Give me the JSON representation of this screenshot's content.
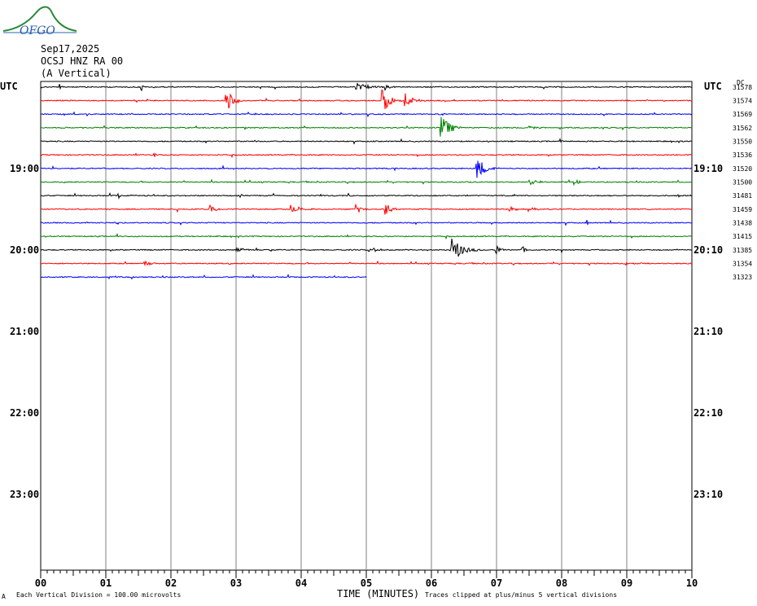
{
  "header": {
    "logo_text": "OFGO",
    "date": "Sep17,2025",
    "station": "OCSJ HNZ RA 00",
    "component": "(A Vertical)"
  },
  "axes": {
    "left_unit": "UTC",
    "right_unit": "UTC",
    "right_dc_label": "DC"
  },
  "footer": {
    "left_note": "Each Vertical Division =  100.00 microvolts",
    "x_title": "TIME (MINUTES)",
    "right_note": "Traces clipped at plus/minus 5 vertical divisions",
    "corner_mark": "A"
  },
  "colors": {
    "cycle": [
      "#000000",
      "#ff0000",
      "#0000ff",
      "#008000"
    ],
    "grid": "#808080"
  },
  "chart_data": {
    "type": "line",
    "title": "Sep17,2025 OCSJ HNZ RA 00 (A Vertical)",
    "xlabel": "TIME (MINUTES)",
    "ylabel": "UTC",
    "x_ticks": [
      "00",
      "01",
      "02",
      "03",
      "04",
      "05",
      "06",
      "07",
      "08",
      "09",
      "10"
    ],
    "xlim": [
      0,
      10
    ],
    "time_labels": [
      {
        "left": "19:00",
        "right": "19:10",
        "line_index": 6
      },
      {
        "left": "20:00",
        "right": "20:10",
        "line_index": 12
      },
      {
        "left": "21:00",
        "right": "21:10",
        "line_index": 18
      },
      {
        "left": "22:00",
        "right": "22:10",
        "line_index": 24
      },
      {
        "left": "23:00",
        "right": "23:10",
        "line_index": 30
      }
    ],
    "total_lines": 36,
    "traces": [
      {
        "dc": "31578",
        "color": "#000000",
        "end_minute": 10,
        "events": [
          {
            "t": 0.3,
            "amp": 4,
            "dur": 0.05
          },
          {
            "t": 1.55,
            "amp": 6,
            "dur": 0.05
          },
          {
            "t": 4.85,
            "amp": 6,
            "dur": 0.45
          },
          {
            "t": 5.3,
            "amp": 3,
            "dur": 0.2
          }
        ]
      },
      {
        "dc": "31574",
        "color": "#ff0000",
        "end_minute": 10,
        "events": [
          {
            "t": 2.85,
            "amp": 16,
            "dur": 0.25
          },
          {
            "t": 5.25,
            "amp": 16,
            "dur": 0.3
          },
          {
            "t": 5.6,
            "amp": 9,
            "dur": 0.3
          }
        ]
      },
      {
        "dc": "31569",
        "color": "#0000ff",
        "end_minute": 10,
        "events": [
          {
            "t": 6.15,
            "amp": 2,
            "dur": 0.1
          }
        ]
      },
      {
        "dc": "31562",
        "color": "#008000",
        "end_minute": 10,
        "events": [
          {
            "t": 6.15,
            "amp": 16,
            "dur": 0.35
          },
          {
            "t": 7.5,
            "amp": 2,
            "dur": 0.3
          }
        ]
      },
      {
        "dc": "31550",
        "color": "#000000",
        "end_minute": 10,
        "events": [
          {
            "t": 3.3,
            "amp": 2,
            "dur": 0.05
          },
          {
            "t": 8.0,
            "amp": 2,
            "dur": 0.05
          }
        ]
      },
      {
        "dc": "31536",
        "color": "#ff0000",
        "end_minute": 10,
        "events": [
          {
            "t": 1.75,
            "amp": 3,
            "dur": 0.05
          }
        ]
      },
      {
        "dc": "31520",
        "color": "#0000ff",
        "end_minute": 10,
        "events": [
          {
            "t": 6.7,
            "amp": 16,
            "dur": 0.3
          }
        ]
      },
      {
        "dc": "31500",
        "color": "#008000",
        "end_minute": 10,
        "events": [
          {
            "t": 7.5,
            "amp": 4,
            "dur": 0.3
          },
          {
            "t": 8.2,
            "amp": 3,
            "dur": 0.3
          }
        ]
      },
      {
        "dc": "31481",
        "color": "#000000",
        "end_minute": 10,
        "events": [
          {
            "t": 1.2,
            "amp": 5,
            "dur": 0.05
          },
          {
            "t": 9.8,
            "amp": 2,
            "dur": 0.05
          }
        ]
      },
      {
        "dc": "31459",
        "color": "#ff0000",
        "end_minute": 10,
        "events": [
          {
            "t": 2.6,
            "amp": 5,
            "dur": 0.3
          },
          {
            "t": 3.85,
            "amp": 5,
            "dur": 0.4
          },
          {
            "t": 4.85,
            "amp": 6,
            "dur": 0.2
          },
          {
            "t": 5.3,
            "amp": 6,
            "dur": 0.4
          },
          {
            "t": 7.2,
            "amp": 4,
            "dur": 0.2
          },
          {
            "t": 7.5,
            "amp": 3,
            "dur": 0.3
          }
        ]
      },
      {
        "dc": "31438",
        "color": "#0000ff",
        "end_minute": 10,
        "events": [
          {
            "t": 1.15,
            "amp": 3,
            "dur": 0.05
          },
          {
            "t": 8.4,
            "amp": 4,
            "dur": 0.05
          }
        ]
      },
      {
        "dc": "31415",
        "color": "#008000",
        "end_minute": 10,
        "events": []
      },
      {
        "dc": "31385",
        "color": "#000000",
        "end_minute": 10,
        "events": [
          {
            "t": 3.0,
            "amp": 3,
            "dur": 0.4
          },
          {
            "t": 5.05,
            "amp": 6,
            "dur": 0.2
          },
          {
            "t": 6.3,
            "amp": 16,
            "dur": 0.45
          },
          {
            "t": 7.0,
            "amp": 6,
            "dur": 0.2
          },
          {
            "t": 7.4,
            "amp": 5,
            "dur": 0.1
          }
        ]
      },
      {
        "dc": "31354",
        "color": "#ff0000",
        "end_minute": 10,
        "events": [
          {
            "t": 1.6,
            "amp": 3,
            "dur": 0.35
          },
          {
            "t": 9.0,
            "amp": 2,
            "dur": 0.2
          }
        ]
      },
      {
        "dc": "31323",
        "color": "#0000ff",
        "end_minute": 5.0,
        "events": []
      }
    ]
  }
}
